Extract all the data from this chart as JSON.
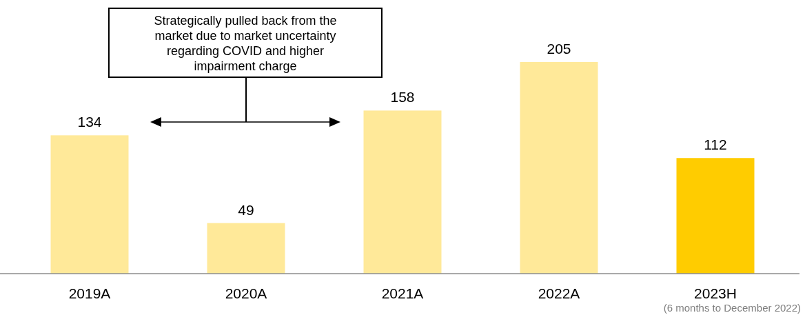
{
  "chart_data": {
    "type": "bar",
    "categories": [
      "2019A",
      "2020A",
      "2021A",
      "2022A",
      "2023H"
    ],
    "values": [
      134,
      49,
      158,
      205,
      112
    ],
    "colors": [
      "#ffe999",
      "#ffe999",
      "#ffe999",
      "#ffe999",
      "#ffcc00"
    ],
    "data_labels": true,
    "annotations": [
      "Strategically pulled back from the market due to market uncertainty regarding COVID and higher impairment charge",
      "(6 months to December 2022)"
    ]
  }
}
